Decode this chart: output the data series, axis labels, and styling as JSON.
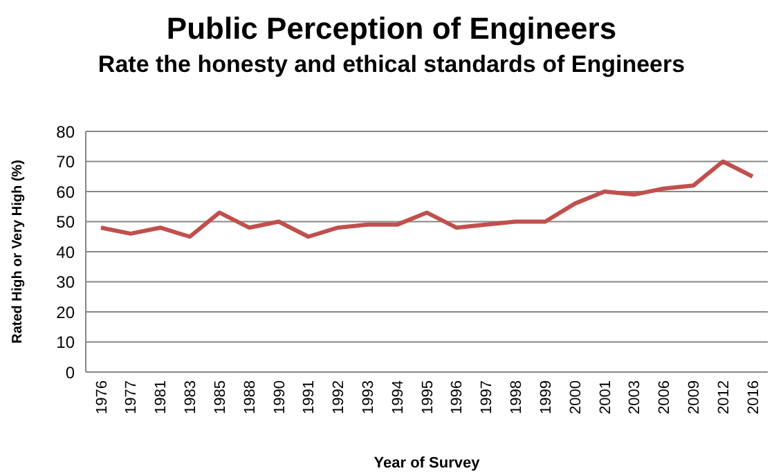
{
  "chart_data": {
    "type": "line",
    "title": "Public Perception of Engineers",
    "subtitle": "Rate the honesty and ethical standards of Engineers",
    "xlabel": "Year of Survey",
    "ylabel": "Rated High or Very High  (%)",
    "categories": [
      "1976",
      "1977",
      "1981",
      "1983",
      "1985",
      "1988",
      "1990",
      "1991",
      "1992",
      "1993",
      "1994",
      "1995",
      "1996",
      "1997",
      "1998",
      "1999",
      "2000",
      "2001",
      "2003",
      "2006",
      "2009",
      "2012",
      "2016"
    ],
    "series": [
      {
        "color": "#c0504d",
        "values": [
          48,
          46,
          48,
          45,
          53,
          48,
          50,
          45,
          48,
          49,
          49,
          53,
          48,
          49,
          50,
          50,
          56,
          60,
          59,
          61,
          62,
          70,
          65
        ]
      }
    ],
    "ylim": [
      0,
      80
    ],
    "yticks": [
      0,
      10,
      20,
      30,
      40,
      50,
      60,
      70,
      80
    ],
    "grid": "y"
  }
}
